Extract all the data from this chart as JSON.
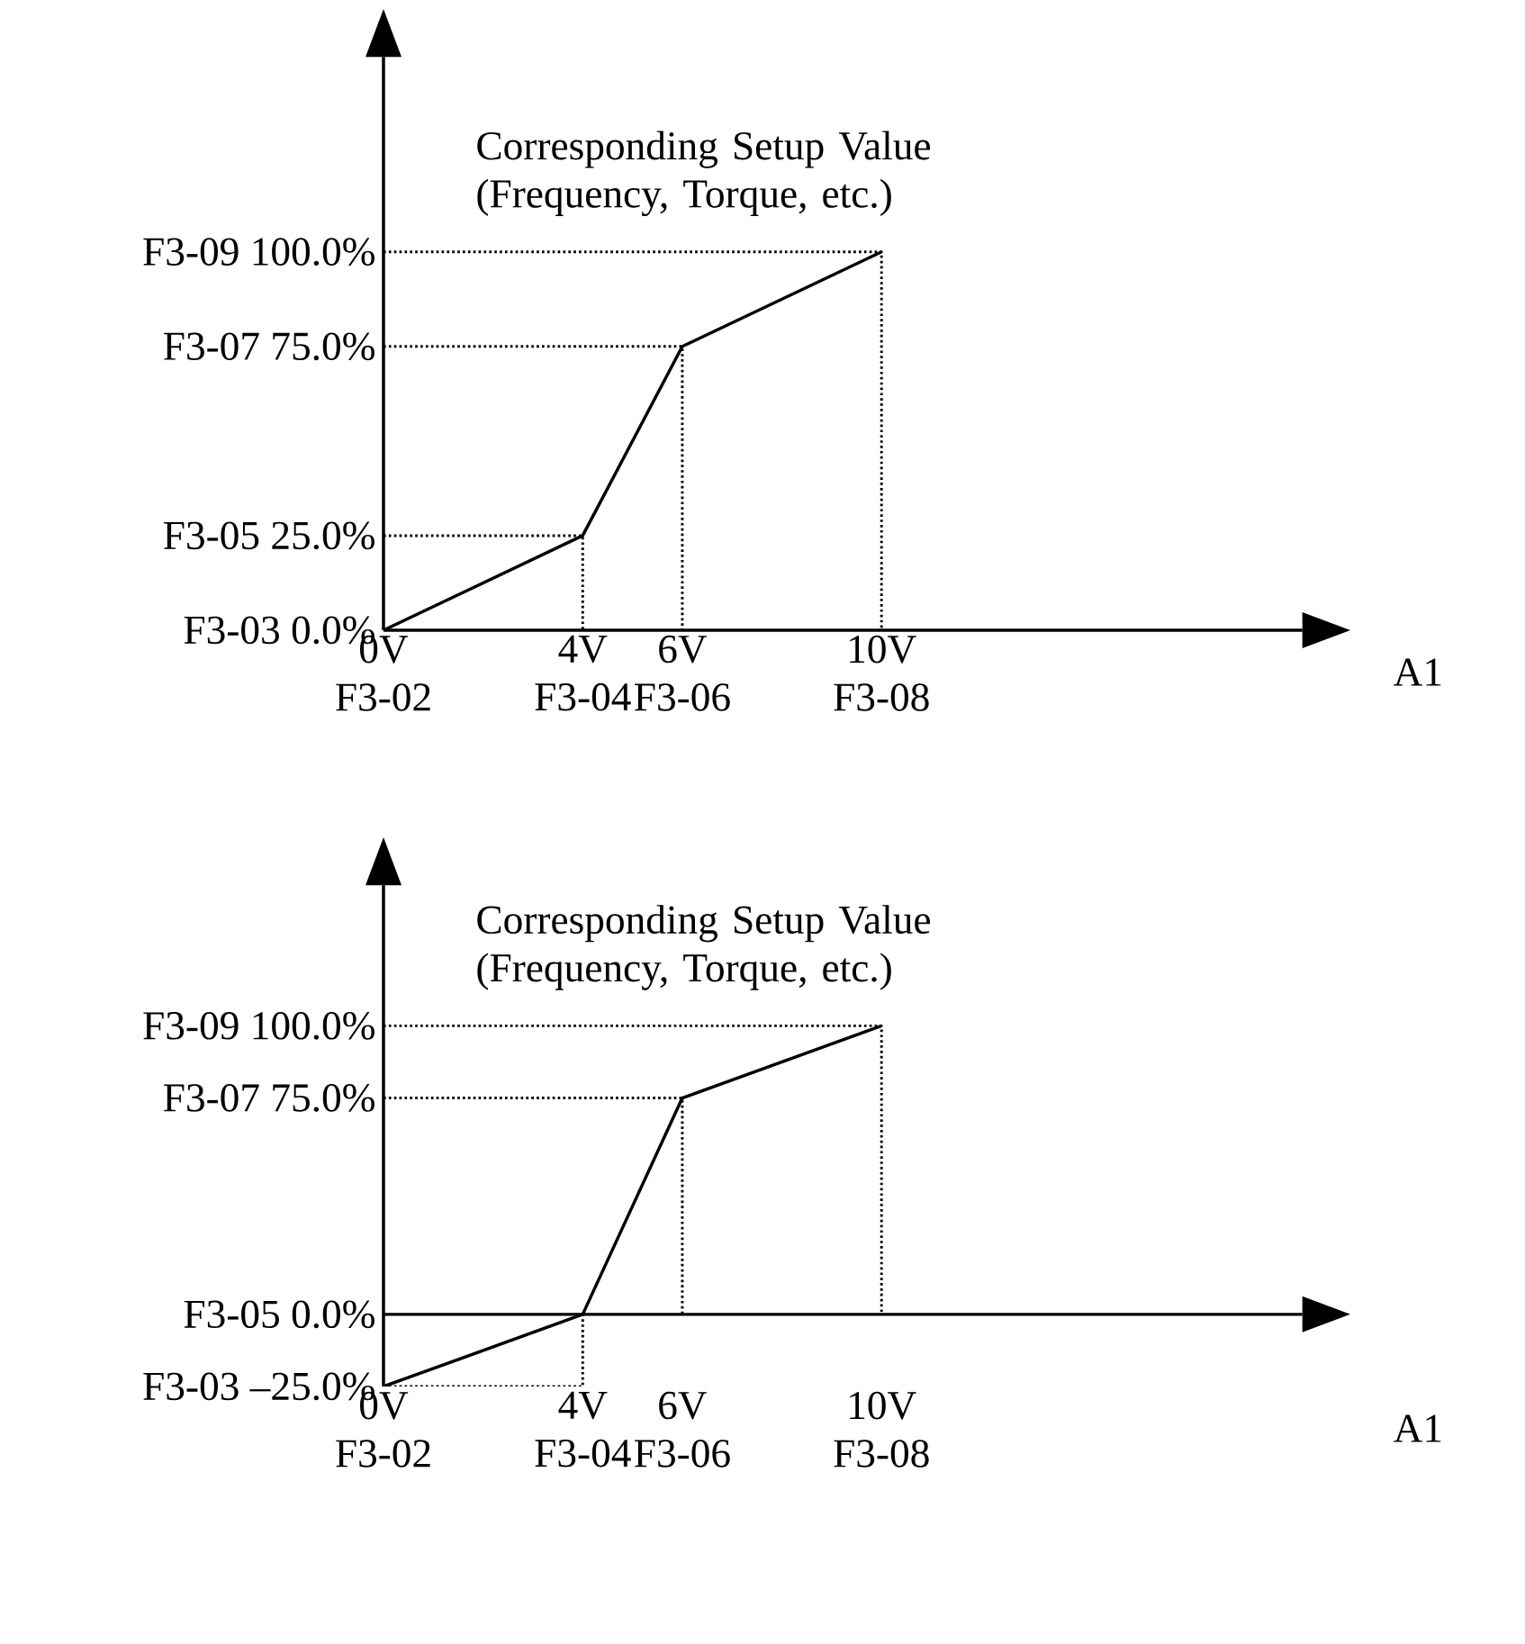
{
  "chart_data": [
    {
      "type": "line",
      "ylabel": "Corresponding Setup Value (Frequency, Torque, etc.)",
      "xlabel": "A1",
      "xlim": [
        0,
        18.45
      ],
      "ylim": [
        0,
        151.5
      ],
      "xticks": [
        {
          "value": 0,
          "label": "0V"
        },
        {
          "value": 4,
          "label": "4V"
        },
        {
          "value": 6,
          "label": "6V"
        },
        {
          "value": 10,
          "label": "10V"
        }
      ],
      "yticks": [
        {
          "value": 0,
          "label": "0.0%"
        },
        {
          "value": 25,
          "label": "25.0%"
        },
        {
          "value": 75,
          "label": "75.0%"
        },
        {
          "value": 100,
          "label": "100.0%"
        }
      ],
      "annotations": [
        "F3-02",
        "F3-04",
        "F3-06",
        "F3-08",
        "F3-03",
        "F3-05",
        "F3-07",
        "F3-09"
      ],
      "marker": "none",
      "grid": false,
      "series": [
        {
          "x": [
            0,
            4,
            6,
            10
          ],
          "values": [
            0,
            25,
            75,
            100
          ],
          "color": "#000000",
          "line_style": "solid"
        },
        {
          "x": [
            0,
            4,
            4
          ],
          "values": [
            25,
            25,
            0
          ],
          "color": "#000000",
          "line_style": "dotted"
        },
        {
          "x": [
            0,
            6,
            6
          ],
          "values": [
            75,
            75,
            0
          ],
          "color": "#000000",
          "line_style": "dotted"
        },
        {
          "x": [
            0,
            10,
            10
          ],
          "values": [
            100,
            100,
            0
          ],
          "color": "#000000",
          "line_style": "dotted"
        }
      ]
    },
    {
      "type": "line",
      "ylabel": "Corresponding Setup Value (Frequency, Torque, etc.)",
      "xlabel": "A1",
      "xlim": [
        0,
        18.45
      ],
      "ylim": [
        -25,
        148.7
      ],
      "xticks": [
        {
          "value": 0,
          "label": "0V"
        },
        {
          "value": 4,
          "label": "4V"
        },
        {
          "value": 6,
          "label": "6V"
        },
        {
          "value": 10,
          "label": "10V"
        }
      ],
      "yticks": [
        {
          "value": -25,
          "label": "–25.0%"
        },
        {
          "value": 0,
          "label": "0.0%"
        },
        {
          "value": 75,
          "label": "75.0%"
        },
        {
          "value": 100,
          "label": "100.0%"
        }
      ],
      "annotations": [
        "F3-02",
        "F3-04",
        "F3-06",
        "F3-08",
        "F3-03",
        "F3-05",
        "F3-07",
        "F3-09"
      ],
      "marker": "none",
      "grid": false,
      "series": [
        {
          "x": [
            0,
            4,
            6,
            10
          ],
          "values": [
            -25,
            0,
            75,
            100
          ],
          "color": "#000000",
          "line_style": "solid"
        },
        {
          "x": [
            0,
            4,
            4
          ],
          "values": [
            -25,
            -25,
            0
          ],
          "color": "#000000",
          "line_style": "dotted"
        },
        {
          "x": [
            0,
            6,
            6
          ],
          "values": [
            75,
            75,
            0
          ],
          "color": "#000000",
          "line_style": "dotted"
        },
        {
          "x": [
            0,
            10,
            10
          ],
          "values": [
            100,
            100,
            0
          ],
          "color": "#000000",
          "line_style": "dotted"
        }
      ]
    }
  ]
}
